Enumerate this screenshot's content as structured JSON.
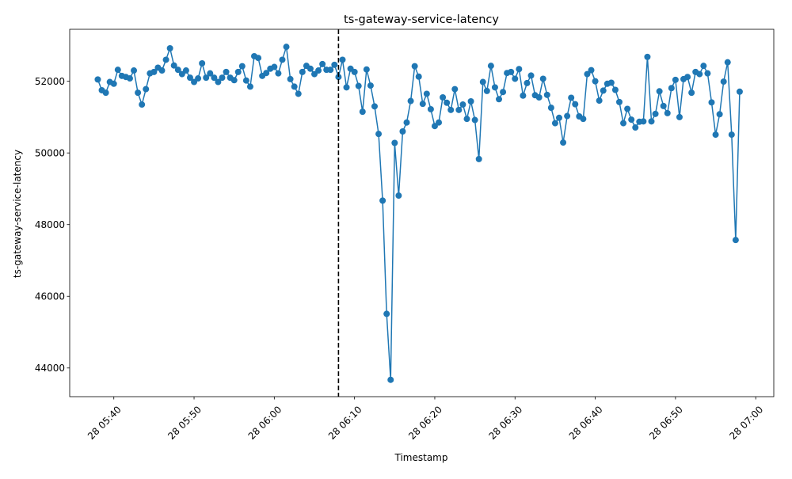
{
  "colors": {
    "series": "#1f77b4",
    "vline": "#000000",
    "background": "#ffffff",
    "axes": "#000000"
  },
  "chart_data": {
    "type": "line",
    "title": "ts-gateway-service-latency",
    "xlabel": "Timestamp",
    "ylabel": "ts-gateway-service-latency",
    "grid": false,
    "legend": "none",
    "markers": "circle",
    "x_range": [
      "2024-01-28 05:34:30",
      "2024-01-28 07:02:15"
    ],
    "ylim": [
      43200,
      53450
    ],
    "y_ticks": [
      44000,
      46000,
      48000,
      50000,
      52000
    ],
    "y_tick_labels": [
      "44000",
      "46000",
      "48000",
      "50000",
      "52000"
    ],
    "x_ticks": [
      "2024-01-28 05:40",
      "2024-01-28 05:50",
      "2024-01-28 06:00",
      "2024-01-28 06:10",
      "2024-01-28 06:20",
      "2024-01-28 06:30",
      "2024-01-28 06:40",
      "2024-01-28 06:50",
      "2024-01-28 07:00"
    ],
    "x_tick_labels": [
      "28 05:40",
      "28 05:50",
      "28 06:00",
      "28 06:10",
      "28 06:20",
      "28 06:30",
      "28 06:40",
      "28 06:50",
      "28 07:00"
    ],
    "vline": {
      "x": "2024-01-28 06:08",
      "style": "dashed"
    },
    "series": [
      {
        "x_start": "2024-01-28 05:38",
        "interval_seconds": 30,
        "values": [
          52050,
          51750,
          51680,
          51980,
          51930,
          52320,
          52150,
          52120,
          52080,
          52300,
          51680,
          51350,
          51780,
          52220,
          52260,
          52380,
          52300,
          52600,
          52920,
          52440,
          52320,
          52200,
          52300,
          52100,
          51980,
          52080,
          52500,
          52100,
          52220,
          52100,
          51980,
          52100,
          52260,
          52100,
          52030,
          52260,
          52420,
          52020,
          51850,
          52700,
          52650,
          52150,
          52230,
          52350,
          52400,
          52220,
          52600,
          52960,
          52060,
          51850,
          51650,
          52260,
          52430,
          52350,
          52200,
          52300,
          52480,
          52320,
          52320,
          52460,
          52120,
          52600,
          51830,
          52350,
          52260,
          51870,
          51150,
          52330,
          51880,
          51300,
          50530,
          48670,
          45510,
          43670,
          50280,
          48810,
          50600,
          50850,
          51450,
          52420,
          52130,
          51370,
          51650,
          51220,
          50750,
          50850,
          51550,
          51400,
          51200,
          51780,
          51200,
          51350,
          50950,
          51440,
          50920,
          49830,
          51980,
          51730,
          52430,
          51830,
          51500,
          51700,
          52230,
          52260,
          52070,
          52340,
          51600,
          51950,
          52160,
          51610,
          51550,
          52070,
          51620,
          51260,
          50830,
          50980,
          50290,
          51030,
          51540,
          51360,
          51020,
          50950,
          52200,
          52310,
          52000,
          51460,
          51740,
          51930,
          51960,
          51760,
          51420,
          50830,
          51230,
          50930,
          50710,
          50870,
          50880,
          52680,
          50880,
          51090,
          51720,
          51310,
          51110,
          51810,
          52040,
          51000,
          52060,
          52120,
          51680,
          52260,
          52200,
          52430,
          52220,
          51410,
          50510,
          51080,
          51990,
          52530,
          50510,
          47570,
          51710
        ]
      }
    ]
  }
}
